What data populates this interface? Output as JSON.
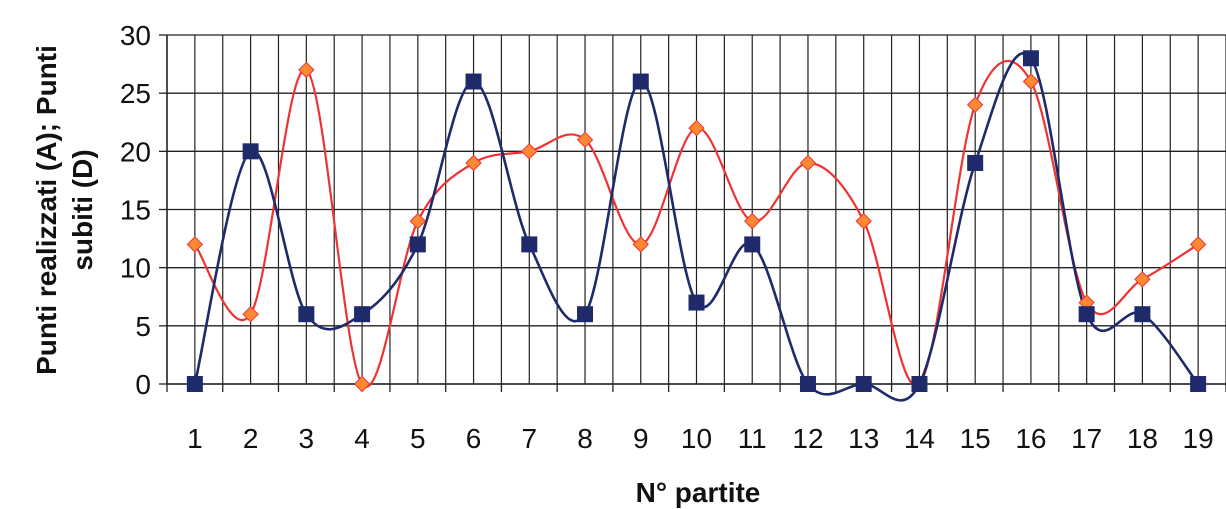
{
  "chart_data": {
    "type": "line",
    "x": [
      1,
      2,
      3,
      4,
      5,
      6,
      7,
      8,
      9,
      10,
      11,
      12,
      13,
      14,
      15,
      16,
      17,
      18,
      19
    ],
    "xlabel": "N° partite",
    "ylabel_line1": "Punti realizzati (A); Punti",
    "ylabel_line2": "subiti (D)",
    "ylim": [
      0,
      30
    ],
    "yticks": [
      0,
      5,
      10,
      15,
      20,
      25,
      30
    ],
    "grid": true,
    "legend": "none",
    "smooth": true,
    "series": [
      {
        "marker": "diamond",
        "color": "#ee3333",
        "marker_color": "#ff8833",
        "values": [
          12,
          6,
          27,
          0,
          14,
          19,
          20,
          21,
          12,
          22,
          14,
          19,
          14,
          0,
          24,
          26,
          7,
          9,
          12
        ]
      },
      {
        "marker": "square",
        "color": "#1f2a6b",
        "marker_color": "#1f2a6b",
        "values": [
          0,
          20,
          6,
          6,
          12,
          26,
          12,
          6,
          26,
          7,
          12,
          0,
          0,
          0,
          19,
          28,
          6,
          6,
          0
        ]
      }
    ]
  }
}
